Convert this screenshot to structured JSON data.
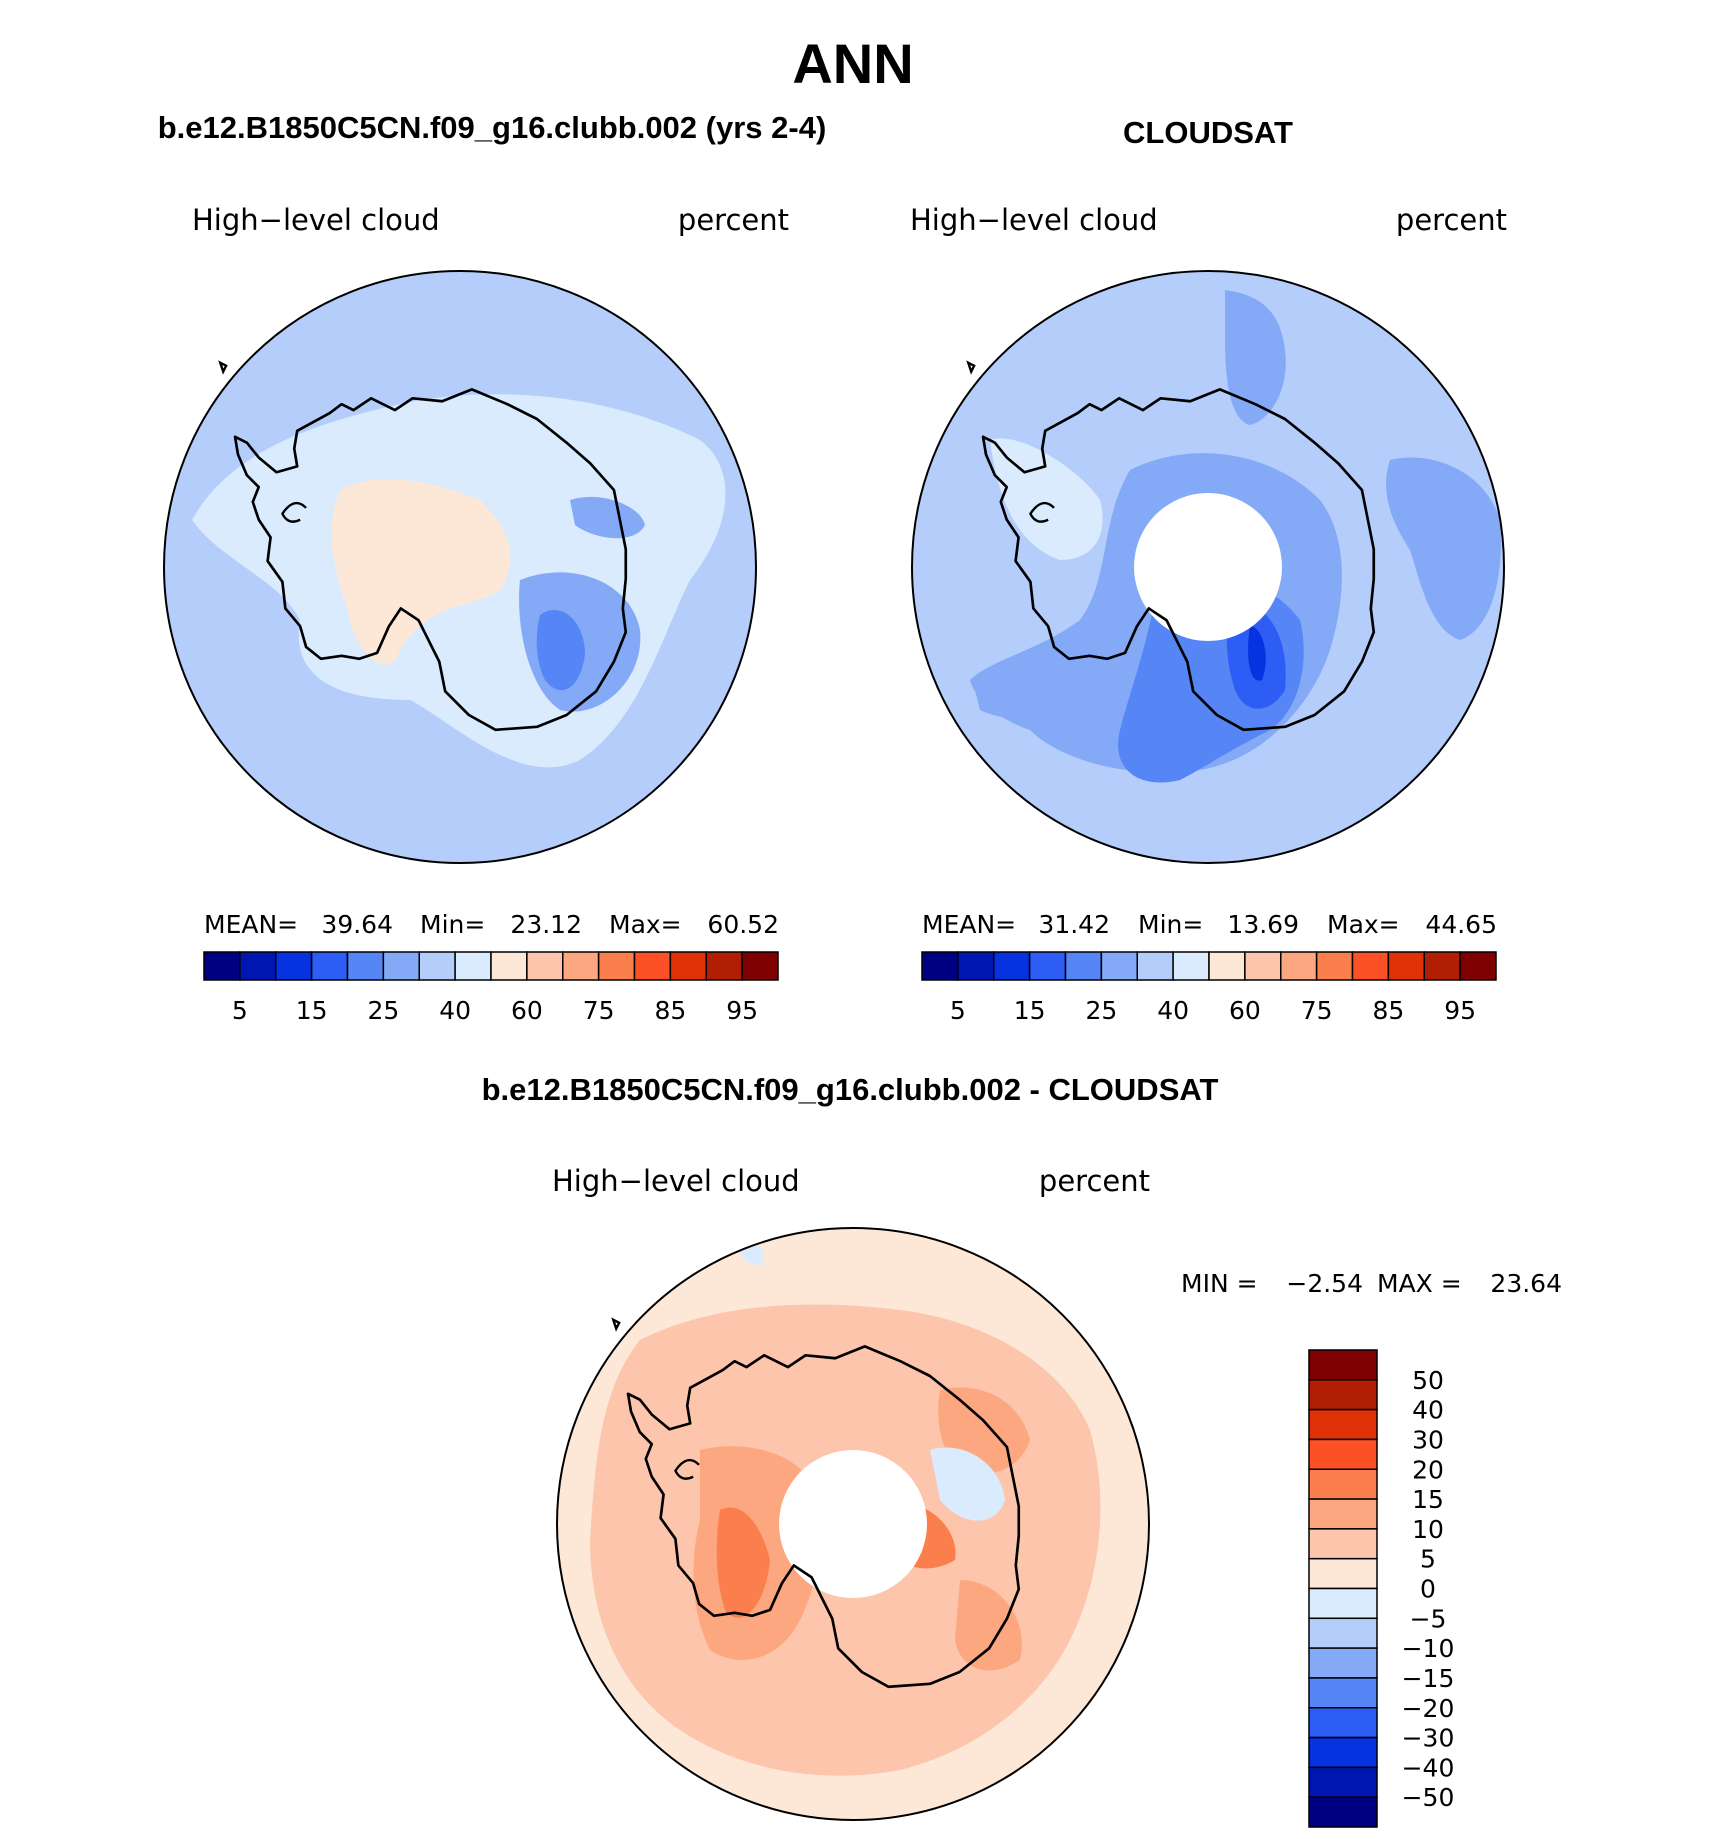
{
  "figure": {
    "title": "ANN",
    "model_title": "b.e12.B1850C5CN.f09_g16.clubb.002 (yrs 2-4)",
    "obs_title": "CLOUDSAT",
    "diff_title": "b.e12.B1850C5CN.f09_g16.clubb.002 - CLOUDSAT"
  },
  "panels": [
    {
      "id": "model",
      "variable": "High−level cloud",
      "units": "percent",
      "stats": {
        "mean_label": "MEAN=",
        "mean": "39.64",
        "min_label": "Min=",
        "min": "23.12",
        "max_label": "Max=",
        "max": "60.52"
      },
      "has_pole_hole": false
    },
    {
      "id": "obs",
      "variable": "High−level cloud",
      "units": "percent",
      "stats": {
        "mean_label": "MEAN=",
        "mean": "31.42",
        "min_label": "Min=",
        "min": "13.69",
        "max_label": "Max=",
        "max": "44.65"
      },
      "has_pole_hole": true
    }
  ],
  "diff_panel": {
    "variable": "High−level cloud",
    "units": "percent",
    "stats": {
      "min_label": "MIN =",
      "min": "−2.54",
      "max_label": "MAX =",
      "max": "23.64"
    },
    "has_pole_hole": true
  },
  "colorbar_main": {
    "colors": [
      "#000083",
      "#0016b0",
      "#0632e0",
      "#2d5df5",
      "#5686f5",
      "#84a9f7",
      "#b4cdfa",
      "#d9ebfc",
      "#fde8d7",
      "#fcc5ac",
      "#fca780",
      "#fb7f4c",
      "#fc5126",
      "#e03209",
      "#b21e04",
      "#7f0000"
    ],
    "tick_labels": [
      "5",
      "15",
      "25",
      "40",
      "60",
      "75",
      "85",
      "95"
    ]
  },
  "colorbar_diff": {
    "colors_top_to_bottom": [
      "#7f0000",
      "#b21e04",
      "#e03209",
      "#fc5126",
      "#fb7f4c",
      "#fca780",
      "#fcc5ac",
      "#fde8d7",
      "#d9ebfc",
      "#b4cdfa",
      "#84a9f7",
      "#5686f5",
      "#2d5df5",
      "#0632e0",
      "#0016b0",
      "#000083"
    ],
    "tick_labels": [
      "50",
      "40",
      "30",
      "20",
      "15",
      "10",
      "5",
      "0",
      "−5",
      "−10",
      "−15",
      "−20",
      "−30",
      "−40",
      "−50"
    ]
  }
}
